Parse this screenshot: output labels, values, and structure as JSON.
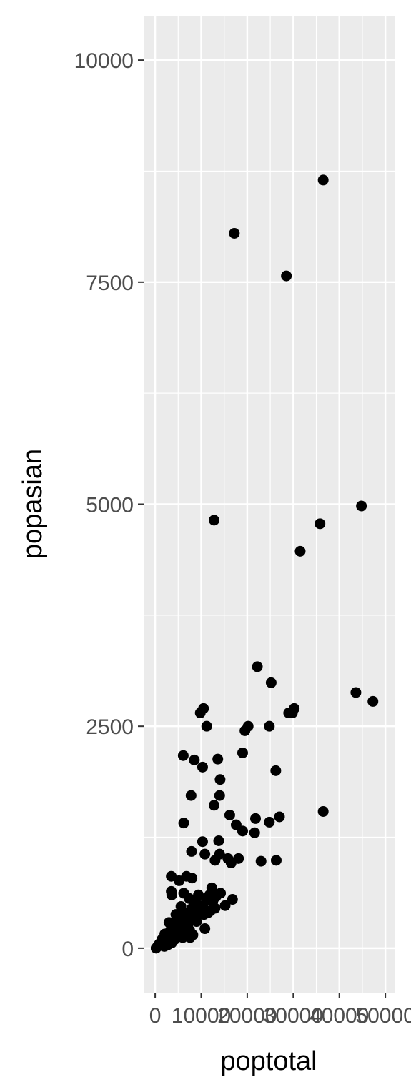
{
  "chart_data": {
    "type": "scatter",
    "xlabel": "poptotal",
    "ylabel": "popasian",
    "xlim": [
      -2500,
      52000
    ],
    "ylim": [
      -500,
      10500
    ],
    "x_ticks": [
      0,
      10000,
      20000,
      30000,
      40000,
      50000
    ],
    "x_tick_labels": [
      "0",
      "10000",
      "20000",
      "30000",
      "40000",
      "50000"
    ],
    "y_ticks": [
      0,
      2500,
      5000,
      7500,
      10000
    ],
    "y_tick_labels": [
      "0",
      "2500",
      "5000",
      "7500",
      "10000"
    ],
    "grid": true,
    "legend": "none",
    "colors": {
      "panel": "#ebebeb",
      "grid": "#ffffff",
      "point": "#000000",
      "tick": "#333333"
    },
    "points": [
      [
        36500,
        8650
      ],
      [
        17200,
        8050
      ],
      [
        28500,
        7570
      ],
      [
        12800,
        4820
      ],
      [
        44800,
        4980
      ],
      [
        35800,
        4780
      ],
      [
        31500,
        4470
      ],
      [
        22200,
        3170
      ],
      [
        25200,
        2990
      ],
      [
        43600,
        2880
      ],
      [
        47300,
        2780
      ],
      [
        30200,
        2700
      ],
      [
        29800,
        2650
      ],
      [
        29000,
        2650
      ],
      [
        10500,
        2700
      ],
      [
        9800,
        2650
      ],
      [
        20200,
        2500
      ],
      [
        19500,
        2450
      ],
      [
        24800,
        2500
      ],
      [
        11200,
        2500
      ],
      [
        19000,
        2200
      ],
      [
        13600,
        2130
      ],
      [
        8500,
        2120
      ],
      [
        6100,
        2170
      ],
      [
        10300,
        2040
      ],
      [
        26200,
        2000
      ],
      [
        14100,
        1900
      ],
      [
        7800,
        1720
      ],
      [
        14000,
        1720
      ],
      [
        12800,
        1610
      ],
      [
        36500,
        1540
      ],
      [
        16200,
        1500
      ],
      [
        27000,
        1480
      ],
      [
        21800,
        1460
      ],
      [
        24800,
        1420
      ],
      [
        17600,
        1390
      ],
      [
        6200,
        1410
      ],
      [
        19000,
        1320
      ],
      [
        21600,
        1300
      ],
      [
        7900,
        1090
      ],
      [
        10300,
        1200
      ],
      [
        13800,
        1210
      ],
      [
        10800,
        1060
      ],
      [
        14000,
        1060
      ],
      [
        15800,
        1010
      ],
      [
        18100,
        1010
      ],
      [
        23000,
        980
      ],
      [
        26300,
        990
      ],
      [
        13000,
        990
      ],
      [
        16500,
        960
      ],
      [
        3500,
        810
      ],
      [
        6800,
        810
      ],
      [
        8000,
        790
      ],
      [
        5200,
        760
      ],
      [
        3500,
        640
      ],
      [
        3600,
        600
      ],
      [
        12300,
        680
      ],
      [
        14200,
        620
      ],
      [
        16800,
        550
      ],
      [
        15200,
        480
      ],
      [
        13000,
        450
      ],
      [
        11500,
        400
      ],
      [
        10800,
        220
      ],
      [
        9400,
        600
      ],
      [
        8800,
        520
      ],
      [
        7400,
        560
      ],
      [
        6200,
        620
      ],
      [
        5600,
        470
      ],
      [
        4500,
        380
      ],
      [
        3000,
        290
      ],
      [
        2100,
        160
      ],
      [
        1500,
        100
      ],
      [
        900,
        50
      ],
      [
        500,
        20
      ],
      [
        200,
        0
      ],
      [
        1200,
        30
      ],
      [
        1800,
        80
      ],
      [
        2600,
        140
      ],
      [
        3300,
        200
      ],
      [
        4000,
        260
      ],
      [
        4700,
        320
      ],
      [
        5400,
        380
      ],
      [
        6100,
        300
      ],
      [
        6800,
        250
      ],
      [
        7500,
        200
      ],
      [
        8200,
        150
      ],
      [
        9000,
        300
      ],
      [
        9700,
        400
      ],
      [
        10400,
        480
      ],
      [
        11100,
        550
      ],
      [
        11800,
        600
      ],
      [
        12500,
        520
      ],
      [
        13200,
        580
      ],
      [
        7000,
        400
      ],
      [
        8000,
        450
      ],
      [
        2400,
        60
      ],
      [
        3100,
        90
      ],
      [
        3800,
        130
      ],
      [
        4600,
        170
      ],
      [
        5300,
        210
      ],
      [
        6000,
        120
      ],
      [
        2000,
        20
      ],
      [
        2800,
        40
      ],
      [
        3600,
        60
      ],
      [
        4300,
        100
      ],
      [
        5000,
        140
      ],
      [
        5800,
        180
      ],
      [
        6500,
        220
      ],
      [
        7200,
        280
      ],
      [
        8600,
        340
      ],
      [
        9200,
        420
      ],
      [
        10000,
        460
      ],
      [
        10600,
        380
      ],
      [
        12000,
        420
      ],
      [
        7600,
        120
      ]
    ]
  }
}
